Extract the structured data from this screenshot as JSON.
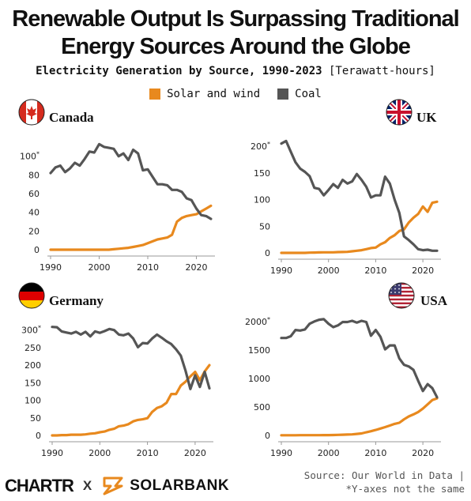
{
  "header": {
    "title_line1": "Renewable Output Is Surpassing Traditional",
    "title_line2": "Energy Sources Around the Globe",
    "subtitle": "Electricity Generation by Source, 1990-2023",
    "unit": "[Terawatt-hours]"
  },
  "legend": [
    {
      "label": "Solar and wind",
      "color": "#E8891E"
    },
    {
      "label": "Coal",
      "color": "#555555"
    }
  ],
  "colors": {
    "solar_wind": "#E8891E",
    "coal": "#555555",
    "axis": "#999999"
  },
  "chart_data": [
    {
      "type": "line",
      "title": "Canada",
      "flag": "canada-flag",
      "x": [
        1990,
        1991,
        1992,
        1993,
        1994,
        1995,
        1996,
        1997,
        1998,
        1999,
        2000,
        2001,
        2002,
        2003,
        2004,
        2005,
        2006,
        2007,
        2008,
        2009,
        2010,
        2011,
        2012,
        2013,
        2014,
        2015,
        2016,
        2017,
        2018,
        2019,
        2020,
        2021,
        2022,
        2023
      ],
      "series": [
        {
          "name": "Solar and wind",
          "values": [
            0,
            0,
            0,
            0,
            0,
            0,
            0,
            0,
            0,
            0,
            0,
            0,
            0,
            0.5,
            1,
            1.5,
            2,
            3,
            4,
            5,
            7,
            9,
            11,
            12,
            13,
            16,
            30,
            34,
            36,
            37,
            38,
            41,
            44,
            47
          ]
        },
        {
          "name": "Coal",
          "values": [
            82,
            88,
            90,
            83,
            87,
            93,
            90,
            97,
            105,
            104,
            113,
            110,
            109,
            108,
            100,
            103,
            96,
            107,
            103,
            85,
            86,
            78,
            70,
            70,
            69,
            64,
            64,
            62,
            55,
            53,
            44,
            37,
            36,
            33
          ]
        }
      ],
      "xticks": [
        "1990",
        "2000",
        "2010",
        "2020"
      ],
      "yticks": [
        "0",
        "20",
        "40",
        "60",
        "80",
        "100*"
      ],
      "xlim": [
        1990,
        2023.5
      ],
      "ylim": [
        0,
        115
      ]
    },
    {
      "type": "line",
      "title": "UK",
      "flag": "uk-flag",
      "x": [
        1990,
        1991,
        1992,
        1993,
        1994,
        1995,
        1996,
        1997,
        1998,
        1999,
        2000,
        2001,
        2002,
        2003,
        2004,
        2005,
        2006,
        2007,
        2008,
        2009,
        2010,
        2011,
        2012,
        2013,
        2014,
        2015,
        2016,
        2017,
        2018,
        2019,
        2020,
        2021,
        2022,
        2023
      ],
      "series": [
        {
          "name": "Solar and wind",
          "values": [
            0,
            0,
            0,
            0,
            0,
            0,
            0.5,
            0.6,
            0.9,
            1,
            1,
            1,
            1.5,
            1.6,
            2,
            3,
            4,
            5,
            7,
            9,
            10,
            16,
            20,
            28,
            33,
            41,
            44,
            57,
            66,
            73,
            87,
            77,
            94,
            96
          ]
        },
        {
          "name": "Coal",
          "values": [
            205,
            210,
            190,
            170,
            158,
            152,
            144,
            122,
            120,
            108,
            118,
            129,
            122,
            137,
            130,
            134,
            148,
            137,
            124,
            104,
            108,
            108,
            143,
            130,
            100,
            75,
            31,
            24,
            16,
            7,
            5,
            6,
            4,
            4
          ]
        }
      ],
      "xticks": [
        "1990",
        "2000",
        "2010",
        "2020"
      ],
      "yticks": [
        "0",
        "50",
        "100",
        "150",
        "200*"
      ],
      "xlim": [
        1990,
        2023.5
      ],
      "ylim": [
        0,
        215
      ]
    },
    {
      "type": "line",
      "title": "Germany",
      "flag": "germany-flag",
      "x": [
        1990,
        1991,
        1992,
        1993,
        1994,
        1995,
        1996,
        1997,
        1998,
        1999,
        2000,
        2001,
        2002,
        2003,
        2004,
        2005,
        2006,
        2007,
        2008,
        2009,
        2010,
        2011,
        2012,
        2013,
        2014,
        2015,
        2016,
        2017,
        2018,
        2019,
        2020,
        2021,
        2022,
        2023
      ],
      "series": [
        {
          "name": "Solar and wind",
          "values": [
            0,
            0,
            1,
            1,
            2,
            2,
            2,
            3,
            5,
            6,
            9,
            11,
            16,
            19,
            26,
            28,
            32,
            40,
            44,
            46,
            49,
            67,
            78,
            83,
            93,
            118,
            118,
            142,
            153,
            168,
            181,
            157,
            182,
            200
          ]
        },
        {
          "name": "Coal",
          "values": [
            309,
            308,
            296,
            293,
            290,
            295,
            287,
            295,
            282,
            296,
            292,
            297,
            303,
            300,
            287,
            285,
            290,
            276,
            251,
            263,
            262,
            276,
            287,
            278,
            268,
            260,
            245,
            227,
            184,
            132,
            171,
            138,
            181,
            134
          ]
        }
      ],
      "xticks": [
        "1990",
        "2000",
        "2010",
        "2020"
      ],
      "yticks": [
        "0",
        "50",
        "100",
        "150",
        "200",
        "250",
        "300*"
      ],
      "xlim": [
        1990,
        2023.5
      ],
      "ylim": [
        0,
        315
      ]
    },
    {
      "type": "line",
      "title": "USA",
      "flag": "usa-flag",
      "x": [
        1990,
        1991,
        1992,
        1993,
        1994,
        1995,
        1996,
        1997,
        1998,
        1999,
        2000,
        2001,
        2002,
        2003,
        2004,
        2005,
        2006,
        2007,
        2008,
        2009,
        2010,
        2011,
        2012,
        2013,
        2014,
        2015,
        2016,
        2017,
        2018,
        2019,
        2020,
        2021,
        2022,
        2023
      ],
      "series": [
        {
          "name": "Solar and wind",
          "values": [
            3,
            3,
            3,
            3,
            4,
            4,
            4,
            4,
            4,
            5,
            6,
            7,
            10,
            12,
            15,
            18,
            27,
            35,
            55,
            74,
            95,
            121,
            145,
            173,
            203,
            222,
            281,
            333,
            369,
            410,
            470,
            545,
            620,
            650
          ]
        },
        {
          "name": "Coal",
          "values": [
            1710,
            1710,
            1740,
            1850,
            1840,
            1860,
            1960,
            2000,
            2030,
            2040,
            1960,
            1900,
            1930,
            1990,
            1990,
            2010,
            1980,
            2010,
            1990,
            1750,
            1850,
            1730,
            1510,
            1580,
            1580,
            1350,
            1240,
            1210,
            1150,
            960,
            780,
            900,
            830,
            670
          ]
        }
      ],
      "xticks": [
        "1990",
        "2000",
        "2010",
        "2020"
      ],
      "yticks": [
        "0",
        "500",
        "1000",
        "1500",
        "2000*"
      ],
      "xlim": [
        1990,
        2023.5
      ],
      "ylim": [
        0,
        2080
      ]
    }
  ],
  "footer": {
    "brand_left": "CHARTR",
    "separator": "X",
    "brand_right": "SOLARBANK",
    "source": "Source: Our World in Data |",
    "note": "*Y-axes not the same"
  }
}
